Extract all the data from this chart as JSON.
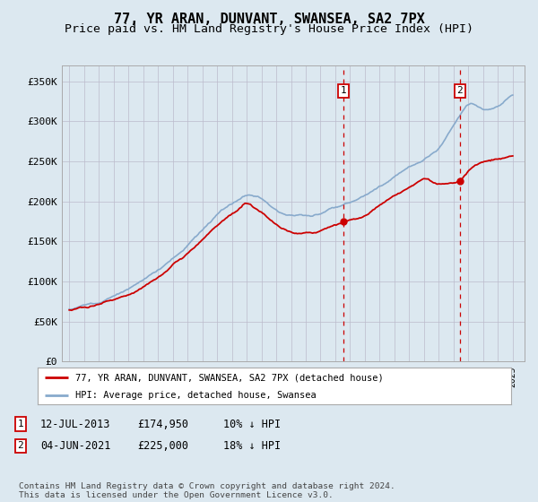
{
  "title": "77, YR ARAN, DUNVANT, SWANSEA, SA2 7PX",
  "subtitle": "Price paid vs. HM Land Registry's House Price Index (HPI)",
  "title_fontsize": 11,
  "subtitle_fontsize": 9.5,
  "legend_line1": "77, YR ARAN, DUNVANT, SWANSEA, SA2 7PX (detached house)",
  "legend_line2": "HPI: Average price, detached house, Swansea",
  "sale1_date": "12-JUL-2013",
  "sale1_price": "£174,950",
  "sale1_hpi": "10% ↓ HPI",
  "sale1_year": 2013.53,
  "sale1_value": 174950,
  "sale2_date": "04-JUN-2021",
  "sale2_price": "£225,000",
  "sale2_hpi": "18% ↓ HPI",
  "sale2_year": 2021.42,
  "sale2_value": 225000,
  "red_line_color": "#cc0000",
  "blue_line_color": "#88aacc",
  "bg_color": "#dce8f0",
  "chart_bg_color": "#dce8f0",
  "grid_color": "#bbbbcc",
  "footer_text": "Contains HM Land Registry data © Crown copyright and database right 2024.\nThis data is licensed under the Open Government Licence v3.0.",
  "ylim": [
    0,
    370000
  ],
  "yticks": [
    0,
    50000,
    100000,
    150000,
    200000,
    250000,
    300000,
    350000
  ],
  "ytick_labels": [
    "£0",
    "£50K",
    "£100K",
    "£150K",
    "£200K",
    "£250K",
    "£300K",
    "£350K"
  ]
}
